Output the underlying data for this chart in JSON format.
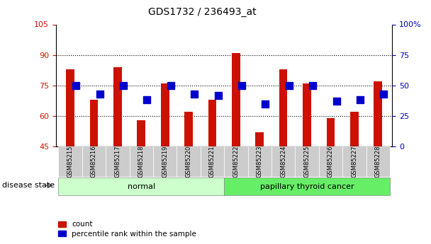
{
  "title": "GDS1732 / 236493_at",
  "samples": [
    "GSM85215",
    "GSM85216",
    "GSM85217",
    "GSM85218",
    "GSM85219",
    "GSM85220",
    "GSM85221",
    "GSM85222",
    "GSM85223",
    "GSM85224",
    "GSM85225",
    "GSM85226",
    "GSM85227",
    "GSM85228"
  ],
  "count_values": [
    83,
    68,
    84,
    58,
    76,
    62,
    68,
    91,
    52,
    83,
    76,
    59,
    62,
    77
  ],
  "percentile_values": [
    50,
    43,
    50,
    38,
    50,
    43,
    42,
    50,
    35,
    50,
    50,
    37,
    38,
    43
  ],
  "ylim_left": [
    45,
    105
  ],
  "ylim_right": [
    0,
    100
  ],
  "yticks_left": [
    45,
    60,
    75,
    90,
    105
  ],
  "yticks_right": [
    0,
    25,
    50,
    75,
    100
  ],
  "ytick_labels_right": [
    "0",
    "25",
    "50",
    "75",
    "100%"
  ],
  "bar_color": "#cc1100",
  "dot_color": "#0000cc",
  "bar_width": 0.35,
  "dot_size": 55,
  "group_labels": [
    "normal",
    "papillary thyroid cancer"
  ],
  "group_colors": [
    "#ccffcc",
    "#66ee66"
  ],
  "disease_state_label": "disease state",
  "legend_count": "count",
  "legend_pct": "percentile rank within the sample",
  "axis_label_color_left": "#cc1100",
  "axis_label_color_right": "#0000cc"
}
